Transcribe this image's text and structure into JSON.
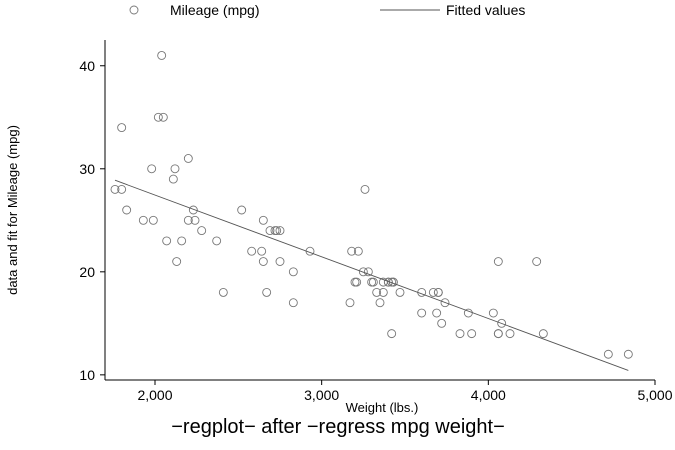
{
  "chart_data": {
    "type": "scatter",
    "caption": "−regplot− after −regress mpg weight−",
    "xlabel": "Weight (lbs.)",
    "ylabel": "data and fit for Mileage (mpg)",
    "xlim": [
      1700,
      5000
    ],
    "ylim": [
      9.5,
      42.5
    ],
    "xticks": [
      {
        "value": 2000,
        "label": "2,000"
      },
      {
        "value": 3000,
        "label": "3,000"
      },
      {
        "value": 4000,
        "label": "4,000"
      },
      {
        "value": 5000,
        "label": "5,000"
      }
    ],
    "yticks": [
      {
        "value": 10,
        "label": "10"
      },
      {
        "value": 20,
        "label": "20"
      },
      {
        "value": 30,
        "label": "30"
      },
      {
        "value": 40,
        "label": "40"
      }
    ],
    "legend_position": "top",
    "colors": {
      "marker": "#777777",
      "fit": "#555555"
    },
    "series": [
      {
        "name": "Mileage (mpg)",
        "kind": "scatter",
        "x": [
          1760,
          1800,
          1800,
          1830,
          1930,
          1980,
          1990,
          2020,
          2040,
          2050,
          2070,
          2110,
          2120,
          2130,
          2160,
          2200,
          2200,
          2230,
          2240,
          2280,
          2370,
          2410,
          2520,
          2580,
          2640,
          2650,
          2650,
          2670,
          2690,
          2720,
          2730,
          2750,
          2750,
          2830,
          2830,
          2930,
          3170,
          3180,
          3200,
          3210,
          3220,
          3250,
          3260,
          3280,
          3300,
          3310,
          3330,
          3350,
          3370,
          3370,
          3400,
          3400,
          3420,
          3420,
          3430,
          3430,
          3470,
          3600,
          3600,
          3670,
          3690,
          3700,
          3700,
          3720,
          3740,
          3830,
          3880,
          3900,
          4030,
          4060,
          4060,
          4060,
          4080,
          4130,
          4290,
          4330,
          4720,
          4840
        ],
        "y": [
          28,
          34,
          28,
          26,
          25,
          30,
          25,
          35,
          41,
          35,
          23,
          29,
          30,
          21,
          23,
          25,
          31,
          26,
          25,
          24,
          23,
          18,
          26,
          22,
          22,
          25,
          21,
          18,
          24,
          24,
          24,
          24,
          21,
          20,
          17,
          22,
          17,
          22,
          19,
          19,
          22,
          20,
          28,
          20,
          19,
          19,
          18,
          17,
          19,
          18,
          19,
          19,
          14,
          19,
          19,
          19,
          18,
          18,
          16,
          18,
          16,
          18,
          18,
          15,
          17,
          14,
          16,
          14,
          16,
          21,
          14,
          14,
          15,
          14,
          21,
          14,
          12,
          12
        ]
      },
      {
        "name": "Fitted values",
        "kind": "line",
        "x": [
          1760,
          4840
        ],
        "y": [
          28.89,
          10.43
        ]
      }
    ]
  }
}
